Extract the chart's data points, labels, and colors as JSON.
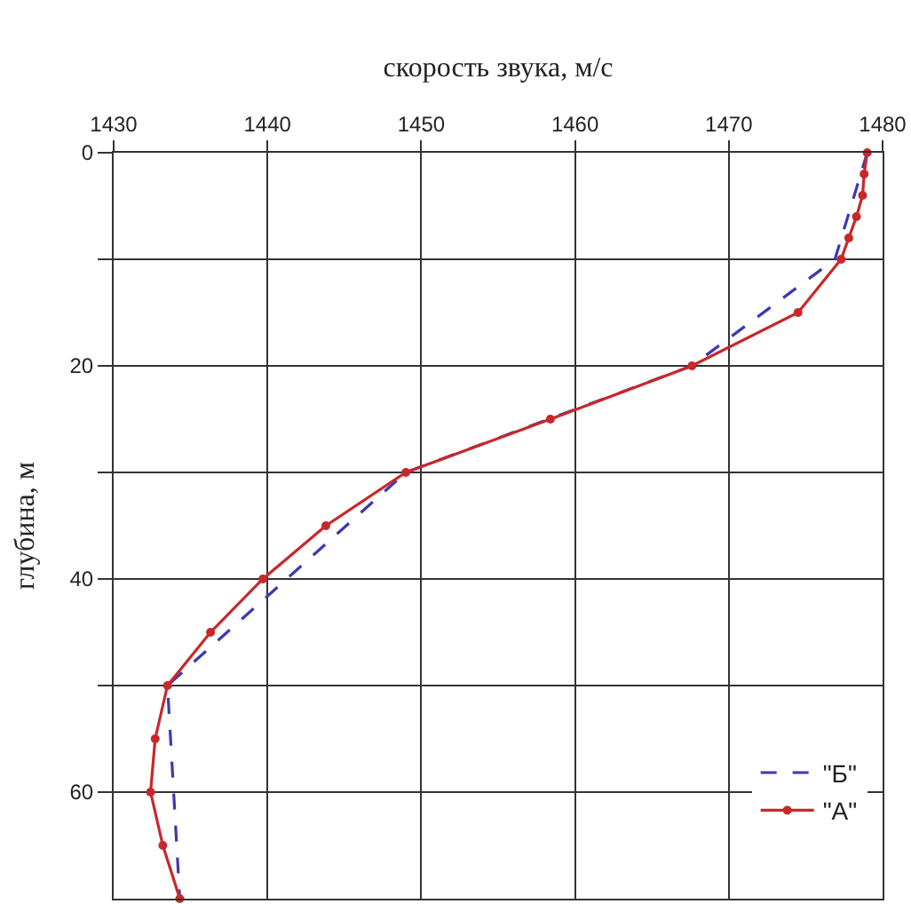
{
  "chart_data": {
    "type": "line",
    "xlabel": "скорость звука, м/с",
    "ylabel": "глубина, м",
    "xlim": [
      1430,
      1480
    ],
    "xticks": [
      1430,
      1440,
      1450,
      1460,
      1470,
      1480
    ],
    "ylim": [
      70,
      0
    ],
    "yticks": [
      0,
      {
        "value": 10,
        "label": null
      },
      20,
      {
        "value": 30,
        "label": null
      },
      40,
      {
        "value": 50,
        "label": null
      },
      60
    ],
    "grid": true,
    "legend": "bottom right",
    "series": [
      {
        "name": "\"Б\"",
        "color": "#3a3ab4",
        "line_style": "dashed",
        "marker": "none",
        "x": [
          1479,
          1476.9,
          1467.6,
          1449,
          1433.5,
          1434.3
        ],
        "values": [
          0,
          10,
          20,
          30,
          50,
          70
        ]
      },
      {
        "name": "\"А\"",
        "color": "#c8282a",
        "line_style": "solid",
        "marker": "circle",
        "x": [
          1479,
          1478.8,
          1478.7,
          1478.3,
          1477.8,
          1477.3,
          1474.5,
          1467.6,
          1458.4,
          1449,
          1443.8,
          1439.7,
          1436.3,
          1433.5,
          1432.7,
          1432.4,
          1433.2,
          1434.3
        ],
        "values": [
          0,
          2,
          4,
          6,
          8,
          10,
          15,
          20,
          25,
          30,
          35,
          40,
          45,
          50,
          55,
          60,
          65,
          70
        ]
      }
    ]
  }
}
